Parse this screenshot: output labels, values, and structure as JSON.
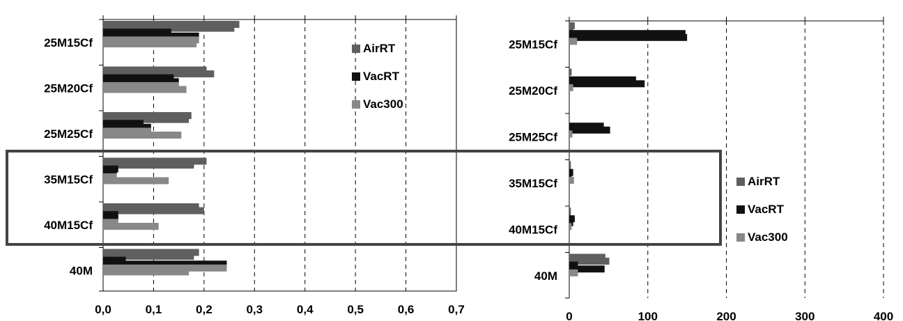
{
  "chart_data": [
    {
      "type": "bar",
      "orientation": "horizontal",
      "categories": [
        "25M15Cf",
        "25M20Cf",
        "25M25Cf",
        "35M15Cf",
        "40M15Cf",
        "40M"
      ],
      "bars_per_category": 6,
      "series_order_per_bar": [
        "AirRT",
        "AirRT",
        "VacRT",
        "VacRT",
        "Vac300",
        "Vac300"
      ],
      "values": [
        [
          0.27,
          0.26,
          0.135,
          0.19,
          0.19,
          0.185
        ],
        [
          0.205,
          0.22,
          0.14,
          0.15,
          0.15,
          0.165
        ],
        [
          0.175,
          0.17,
          0.08,
          0.095,
          0.095,
          0.155
        ],
        [
          0.205,
          0.18,
          0.03,
          0.027,
          0.027,
          0.13
        ],
        [
          0.19,
          0.2,
          0.03,
          0.03,
          0.03,
          0.11
        ],
        [
          0.19,
          0.18,
          0.045,
          0.245,
          0.245,
          0.17
        ]
      ],
      "xlim": [
        0,
        0.7
      ],
      "xticks": [
        "0,0",
        "0,1",
        "0,2",
        "0,3",
        "0,4",
        "0,5",
        "0,6",
        "0,7"
      ],
      "grid": "vertical dashed",
      "legend": {
        "placement": "top-right",
        "entries": [
          {
            "label": "AirRT",
            "color": "#5f5f5f"
          },
          {
            "label": "VacRT",
            "color": "#111111"
          },
          {
            "label": "Vac300",
            "color": "#888888"
          }
        ]
      }
    },
    {
      "type": "bar",
      "orientation": "horizontal",
      "categories": [
        "25M15Cf",
        "25M20Cf",
        "25M25Cf",
        "35M15Cf",
        "40M15Cf",
        "40M"
      ],
      "bars_per_category": 6,
      "series_order_per_bar": [
        "AirRT",
        "AirRT",
        "VacRT",
        "VacRT",
        "Vac300",
        "Vac300"
      ],
      "values": [
        [
          7,
          5,
          148,
          150,
          10,
          0
        ],
        [
          3,
          0,
          85,
          96,
          5,
          0
        ],
        [
          0,
          0,
          44,
          52,
          4,
          0
        ],
        [
          2,
          2,
          5,
          3,
          6,
          0
        ],
        [
          2,
          2,
          7,
          5,
          3,
          0
        ],
        [
          46,
          51,
          11,
          45,
          11,
          0
        ]
      ],
      "xlim": [
        0,
        400
      ],
      "xticks": [
        "0",
        "100",
        "200",
        "300",
        "400"
      ],
      "grid": "vertical dashed",
      "legend": {
        "placement": "bottom-right",
        "entries": [
          {
            "label": "AirRT",
            "color": "#5f5f5f"
          },
          {
            "label": "VacRT",
            "color": "#111111"
          },
          {
            "label": "Vac300",
            "color": "#888888"
          }
        ]
      }
    }
  ],
  "highlight_box": {
    "color": "#444444"
  }
}
